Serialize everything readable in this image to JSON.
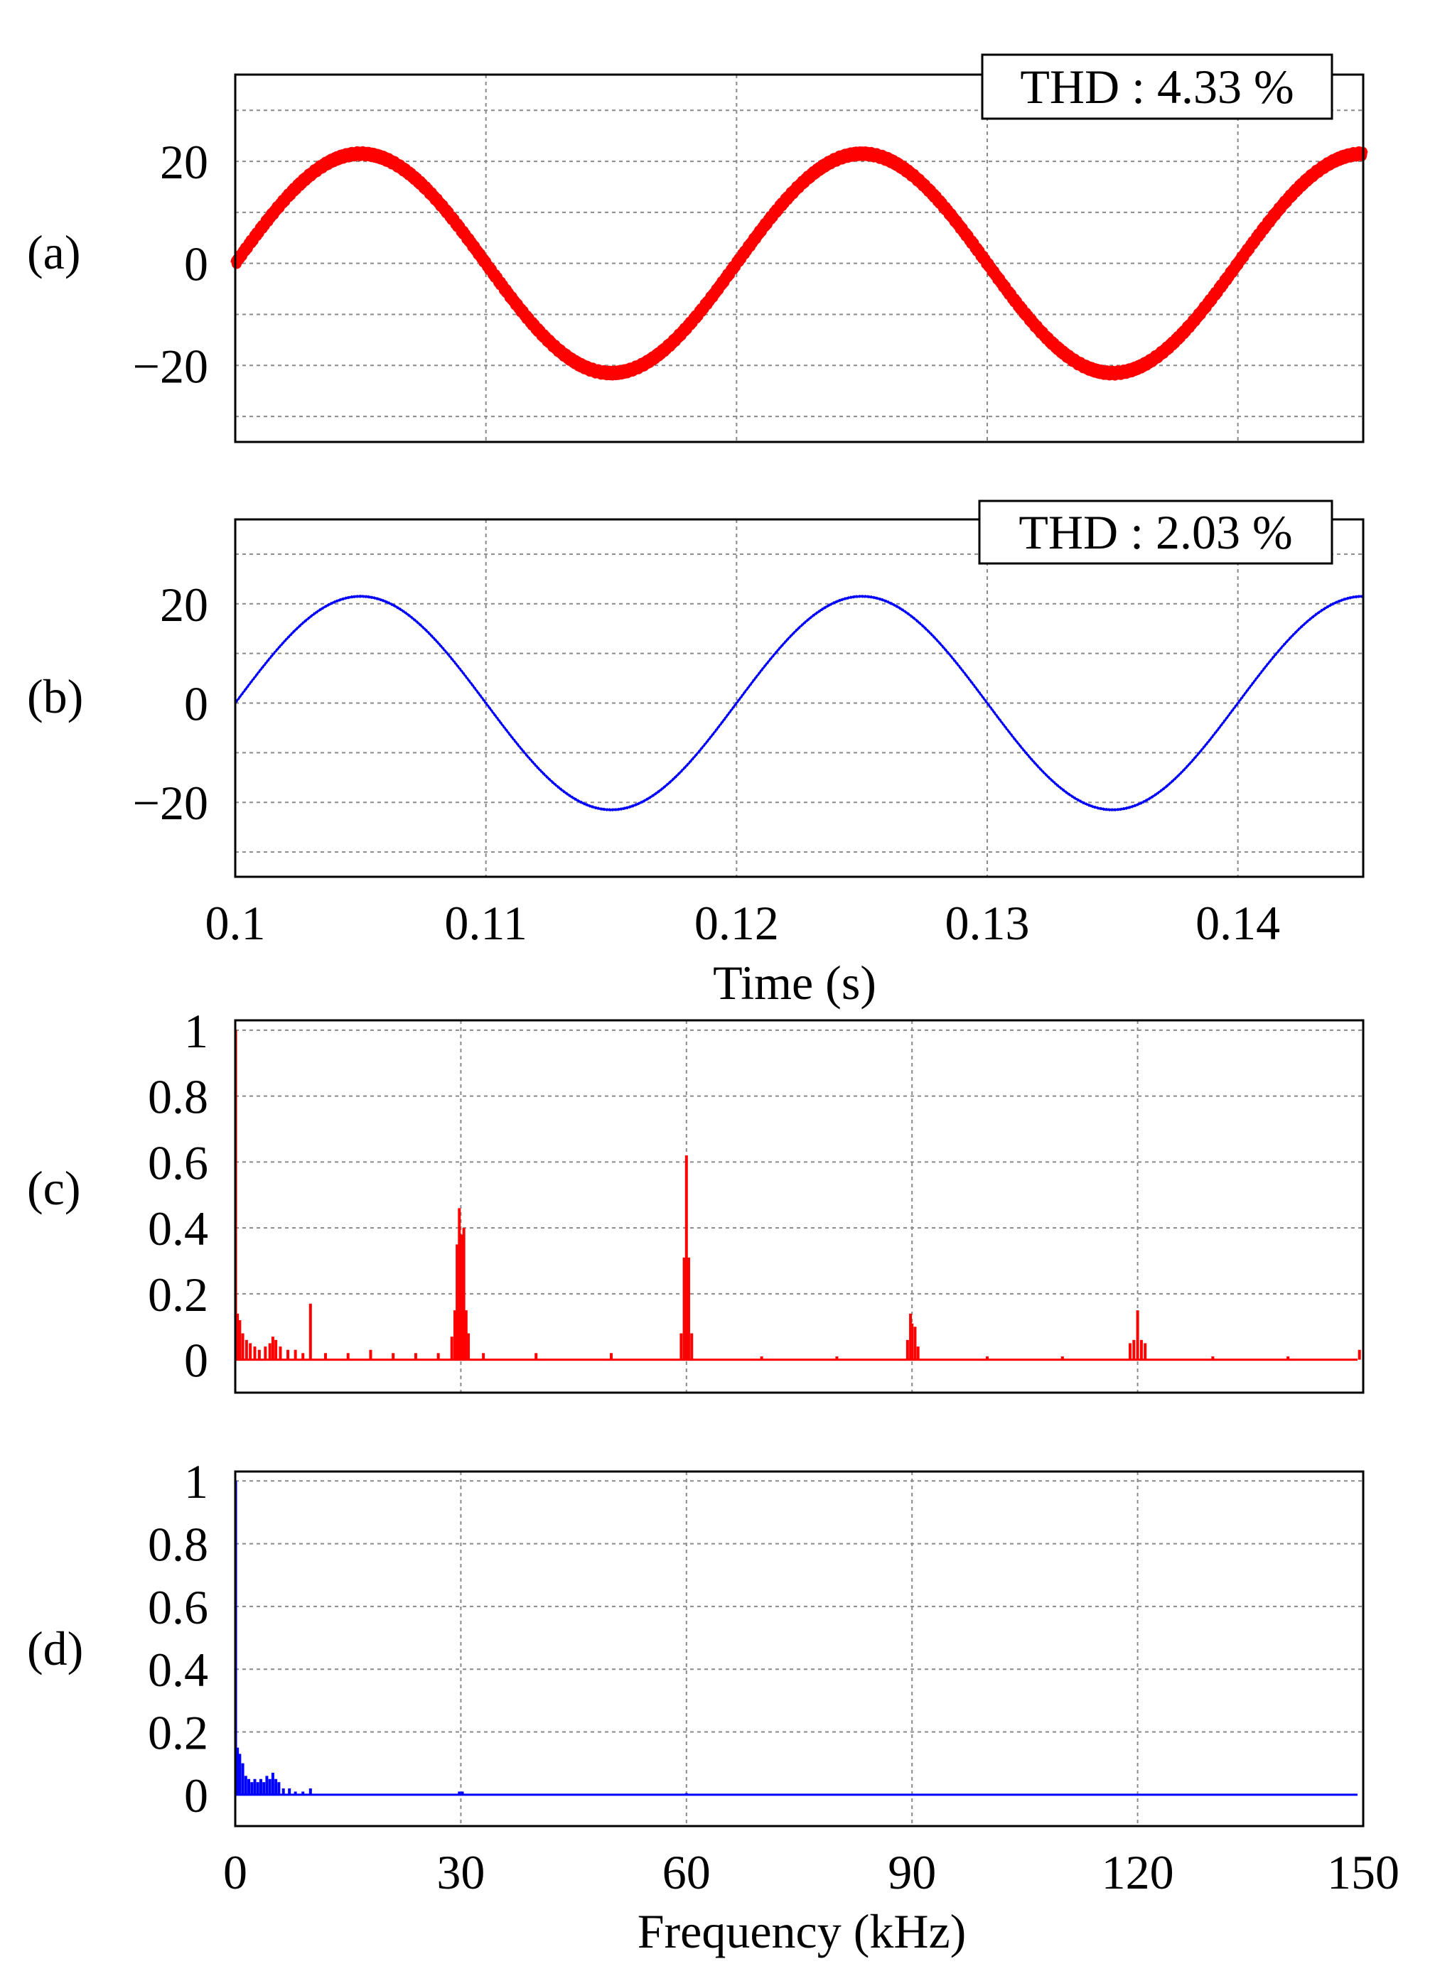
{
  "chart_data": [
    {
      "panel": "(a)",
      "type": "line",
      "color": "#ff0000",
      "annotation": "THD : 4.33 %",
      "xlim": [
        0.1,
        0.145
      ],
      "ylim": [
        -35,
        37
      ],
      "yticks": [
        20,
        0,
        -20
      ],
      "ytick_labels": [
        "20",
        "0",
        "−20"
      ],
      "xgrid": [
        0.11,
        0.12,
        0.13,
        0.14
      ],
      "ygrid": [
        -30,
        -20,
        -10,
        0,
        10,
        20,
        30
      ],
      "waveform": {
        "amplitude": 21.5,
        "frequency_hz": 50,
        "phase_start": 0,
        "ripple_band": 2.0
      },
      "grid": true
    },
    {
      "panel": "(b)",
      "type": "line",
      "color": "#0000ff",
      "annotation": "THD : 2.03 %",
      "xlim": [
        0.1,
        0.145
      ],
      "ylim": [
        -35,
        37
      ],
      "yticks": [
        20,
        0,
        -20
      ],
      "ytick_labels": [
        "20",
        "0",
        "−20"
      ],
      "xticks": [
        0.1,
        0.11,
        0.12,
        0.13,
        0.14
      ],
      "xtick_labels": [
        "0.1",
        "0.11",
        "0.12",
        "0.13",
        "0.14"
      ],
      "xgrid": [
        0.11,
        0.12,
        0.13,
        0.14
      ],
      "ygrid": [
        -30,
        -20,
        -10,
        0,
        10,
        20,
        30
      ],
      "xlabel": "Time (s)",
      "waveform": {
        "amplitude": 21.5,
        "frequency_hz": 50,
        "phase_start": 0,
        "ripple_band": 0.4
      },
      "grid": true
    },
    {
      "panel": "(c)",
      "type": "bar",
      "color": "#ff0000",
      "xlim": [
        0,
        150
      ],
      "ylim": [
        -0.1,
        1.03
      ],
      "yticks": [
        1,
        0.8,
        0.6,
        0.4,
        0.2,
        0
      ],
      "ytick_labels": [
        "1",
        "0.8",
        "0.6",
        "0.4",
        "0.2",
        "0"
      ],
      "xgrid": [
        30,
        60,
        90,
        120
      ],
      "ygrid": [
        0.2,
        0.4,
        0.6,
        0.8,
        1.0
      ],
      "spectrum": [
        {
          "f": 0.05,
          "v": 1.0
        },
        {
          "f": 0.3,
          "v": 0.14
        },
        {
          "f": 0.6,
          "v": 0.12
        },
        {
          "f": 1.0,
          "v": 0.08
        },
        {
          "f": 1.5,
          "v": 0.06
        },
        {
          "f": 2.0,
          "v": 0.05
        },
        {
          "f": 2.6,
          "v": 0.04
        },
        {
          "f": 3.2,
          "v": 0.03
        },
        {
          "f": 4.0,
          "v": 0.04
        },
        {
          "f": 4.6,
          "v": 0.05
        },
        {
          "f": 5.0,
          "v": 0.07
        },
        {
          "f": 5.4,
          "v": 0.06
        },
        {
          "f": 6.0,
          "v": 0.04
        },
        {
          "f": 7.0,
          "v": 0.03
        },
        {
          "f": 8.0,
          "v": 0.03
        },
        {
          "f": 9.0,
          "v": 0.02
        },
        {
          "f": 10.0,
          "v": 0.17
        },
        {
          "f": 12.0,
          "v": 0.02
        },
        {
          "f": 15.0,
          "v": 0.02
        },
        {
          "f": 18.0,
          "v": 0.03
        },
        {
          "f": 21.0,
          "v": 0.02
        },
        {
          "f": 24.0,
          "v": 0.02
        },
        {
          "f": 27.0,
          "v": 0.02
        },
        {
          "f": 28.8,
          "v": 0.07
        },
        {
          "f": 29.2,
          "v": 0.15
        },
        {
          "f": 29.5,
          "v": 0.35
        },
        {
          "f": 29.8,
          "v": 0.46
        },
        {
          "f": 30.1,
          "v": 0.38
        },
        {
          "f": 30.4,
          "v": 0.4
        },
        {
          "f": 30.7,
          "v": 0.15
        },
        {
          "f": 31.0,
          "v": 0.08
        },
        {
          "f": 33.0,
          "v": 0.02
        },
        {
          "f": 40.0,
          "v": 0.02
        },
        {
          "f": 50.0,
          "v": 0.02
        },
        {
          "f": 59.3,
          "v": 0.08
        },
        {
          "f": 59.7,
          "v": 0.31
        },
        {
          "f": 60.0,
          "v": 0.62
        },
        {
          "f": 60.3,
          "v": 0.31
        },
        {
          "f": 60.7,
          "v": 0.08
        },
        {
          "f": 70.0,
          "v": 0.01
        },
        {
          "f": 80.0,
          "v": 0.01
        },
        {
          "f": 89.4,
          "v": 0.06
        },
        {
          "f": 89.8,
          "v": 0.14
        },
        {
          "f": 90.0,
          "v": 0.11
        },
        {
          "f": 90.4,
          "v": 0.1
        },
        {
          "f": 90.8,
          "v": 0.04
        },
        {
          "f": 100.0,
          "v": 0.01
        },
        {
          "f": 110.0,
          "v": 0.01
        },
        {
          "f": 119.0,
          "v": 0.05
        },
        {
          "f": 119.5,
          "v": 0.06
        },
        {
          "f": 120.0,
          "v": 0.15
        },
        {
          "f": 120.5,
          "v": 0.06
        },
        {
          "f": 121.0,
          "v": 0.05
        },
        {
          "f": 130.0,
          "v": 0.01
        },
        {
          "f": 140.0,
          "v": 0.01
        },
        {
          "f": 149.5,
          "v": 0.03
        }
      ],
      "grid": true
    },
    {
      "panel": "(d)",
      "type": "bar",
      "color": "#0000ff",
      "xlim": [
        0,
        150
      ],
      "ylim": [
        -0.1,
        1.03
      ],
      "yticks": [
        1,
        0.8,
        0.6,
        0.4,
        0.2,
        0
      ],
      "ytick_labels": [
        "1",
        "0.8",
        "0.6",
        "0.4",
        "0.2",
        "0"
      ],
      "xticks": [
        0,
        30,
        60,
        90,
        120,
        150
      ],
      "xtick_labels": [
        "0",
        "30",
        "60",
        "90",
        "120",
        "150"
      ],
      "xgrid": [
        30,
        60,
        90,
        120
      ],
      "ygrid": [
        0.2,
        0.4,
        0.6,
        0.8,
        1.0
      ],
      "xlabel": "Frequency (kHz)",
      "spectrum": [
        {
          "f": 0.05,
          "v": 1.0
        },
        {
          "f": 0.3,
          "v": 0.15
        },
        {
          "f": 0.6,
          "v": 0.13
        },
        {
          "f": 1.0,
          "v": 0.1
        },
        {
          "f": 1.4,
          "v": 0.06
        },
        {
          "f": 1.8,
          "v": 0.05
        },
        {
          "f": 2.2,
          "v": 0.04
        },
        {
          "f": 2.6,
          "v": 0.05
        },
        {
          "f": 3.0,
          "v": 0.04
        },
        {
          "f": 3.4,
          "v": 0.05
        },
        {
          "f": 3.8,
          "v": 0.04
        },
        {
          "f": 4.2,
          "v": 0.06
        },
        {
          "f": 4.6,
          "v": 0.05
        },
        {
          "f": 5.0,
          "v": 0.07
        },
        {
          "f": 5.4,
          "v": 0.05
        },
        {
          "f": 5.8,
          "v": 0.04
        },
        {
          "f": 6.4,
          "v": 0.02
        },
        {
          "f": 7.2,
          "v": 0.02
        },
        {
          "f": 8.0,
          "v": 0.01
        },
        {
          "f": 9.0,
          "v": 0.01
        },
        {
          "f": 10.0,
          "v": 0.02
        },
        {
          "f": 29.8,
          "v": 0.01
        },
        {
          "f": 30.2,
          "v": 0.01
        },
        {
          "f": 60.0,
          "v": 0.005
        }
      ],
      "grid": true
    }
  ]
}
